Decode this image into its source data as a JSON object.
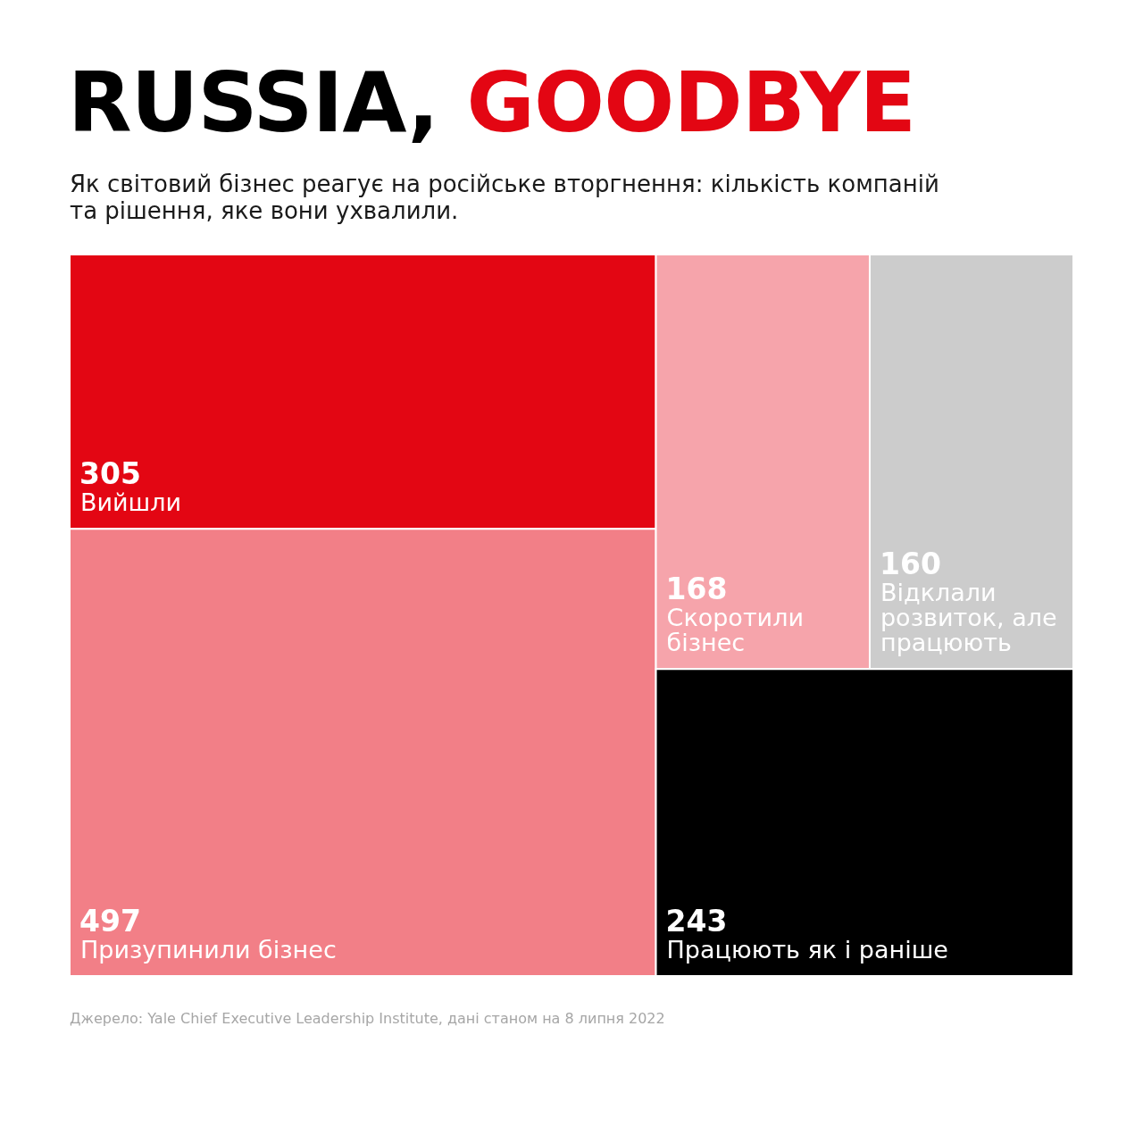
{
  "chart_data": {
    "type": "other",
    "title": "RUSSIA, GOODBYE",
    "subtitle": "Як світовий бізнес реагує на російське вторгнення: кількість компаній та рішення, яке вони ухвалили.",
    "categories": [
      "Вийшли",
      "Призупинили бізнес",
      "Скоротили бізнес",
      "Відклали розвиток, але працюють",
      "Працюють як і раніше"
    ],
    "values": [
      305,
      497,
      168,
      160,
      243
    ],
    "colors": [
      "#e30613",
      "#f27f87",
      "#f6a4ab",
      "#cccccc",
      "#000000"
    ],
    "data_labels": true,
    "annotations": [
      "Джерело: Yale Chief Executive Leadership Institute, дані станом на 8 липня 2022"
    ]
  }
}
